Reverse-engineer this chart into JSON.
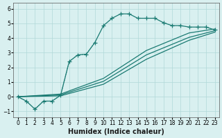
{
  "xlabel": "Humidex (Indice chaleur)",
  "xlim": [
    -0.5,
    23.5
  ],
  "ylim": [
    -1.4,
    6.4
  ],
  "yticks": [
    -1,
    0,
    1,
    2,
    3,
    4,
    5,
    6
  ],
  "xticks": [
    0,
    1,
    2,
    3,
    4,
    5,
    6,
    7,
    8,
    9,
    10,
    11,
    12,
    13,
    14,
    15,
    16,
    17,
    18,
    19,
    20,
    21,
    22,
    23
  ],
  "bg_color": "#d9f0f0",
  "line_color": "#1a7a72",
  "grid_color": "#b0d8d8",
  "line1_x": [
    0,
    1,
    2,
    3,
    4,
    5,
    6,
    7,
    8,
    9,
    10,
    11,
    12,
    13,
    14,
    15,
    16,
    17,
    18,
    19,
    20,
    21,
    22,
    23
  ],
  "line1_y": [
    0,
    -0.3,
    -0.85,
    -0.3,
    -0.3,
    0.1,
    2.4,
    2.85,
    2.9,
    3.7,
    4.85,
    5.35,
    5.65,
    5.65,
    5.35,
    5.35,
    5.35,
    5.05,
    4.85,
    4.85,
    4.75,
    4.75,
    4.75,
    4.55
  ],
  "line2_x": [
    0,
    5,
    10,
    15,
    20,
    23
  ],
  "line2_y": [
    0,
    0.12,
    1.05,
    2.85,
    4.05,
    4.5
  ],
  "line3_x": [
    0,
    5,
    10,
    15,
    20,
    23
  ],
  "line3_y": [
    0,
    0.18,
    1.25,
    3.15,
    4.35,
    4.62
  ],
  "line4_x": [
    0,
    5,
    10,
    15,
    20,
    23
  ],
  "line4_y": [
    0,
    0.06,
    0.85,
    2.55,
    3.85,
    4.4
  ],
  "dotted_x": [
    0,
    1,
    2,
    3,
    4,
    5,
    6,
    7,
    8,
    9
  ],
  "dotted_y": [
    0,
    -0.3,
    -0.85,
    -0.3,
    -0.3,
    0.1,
    2.4,
    2.85,
    2.9,
    3.7
  ]
}
